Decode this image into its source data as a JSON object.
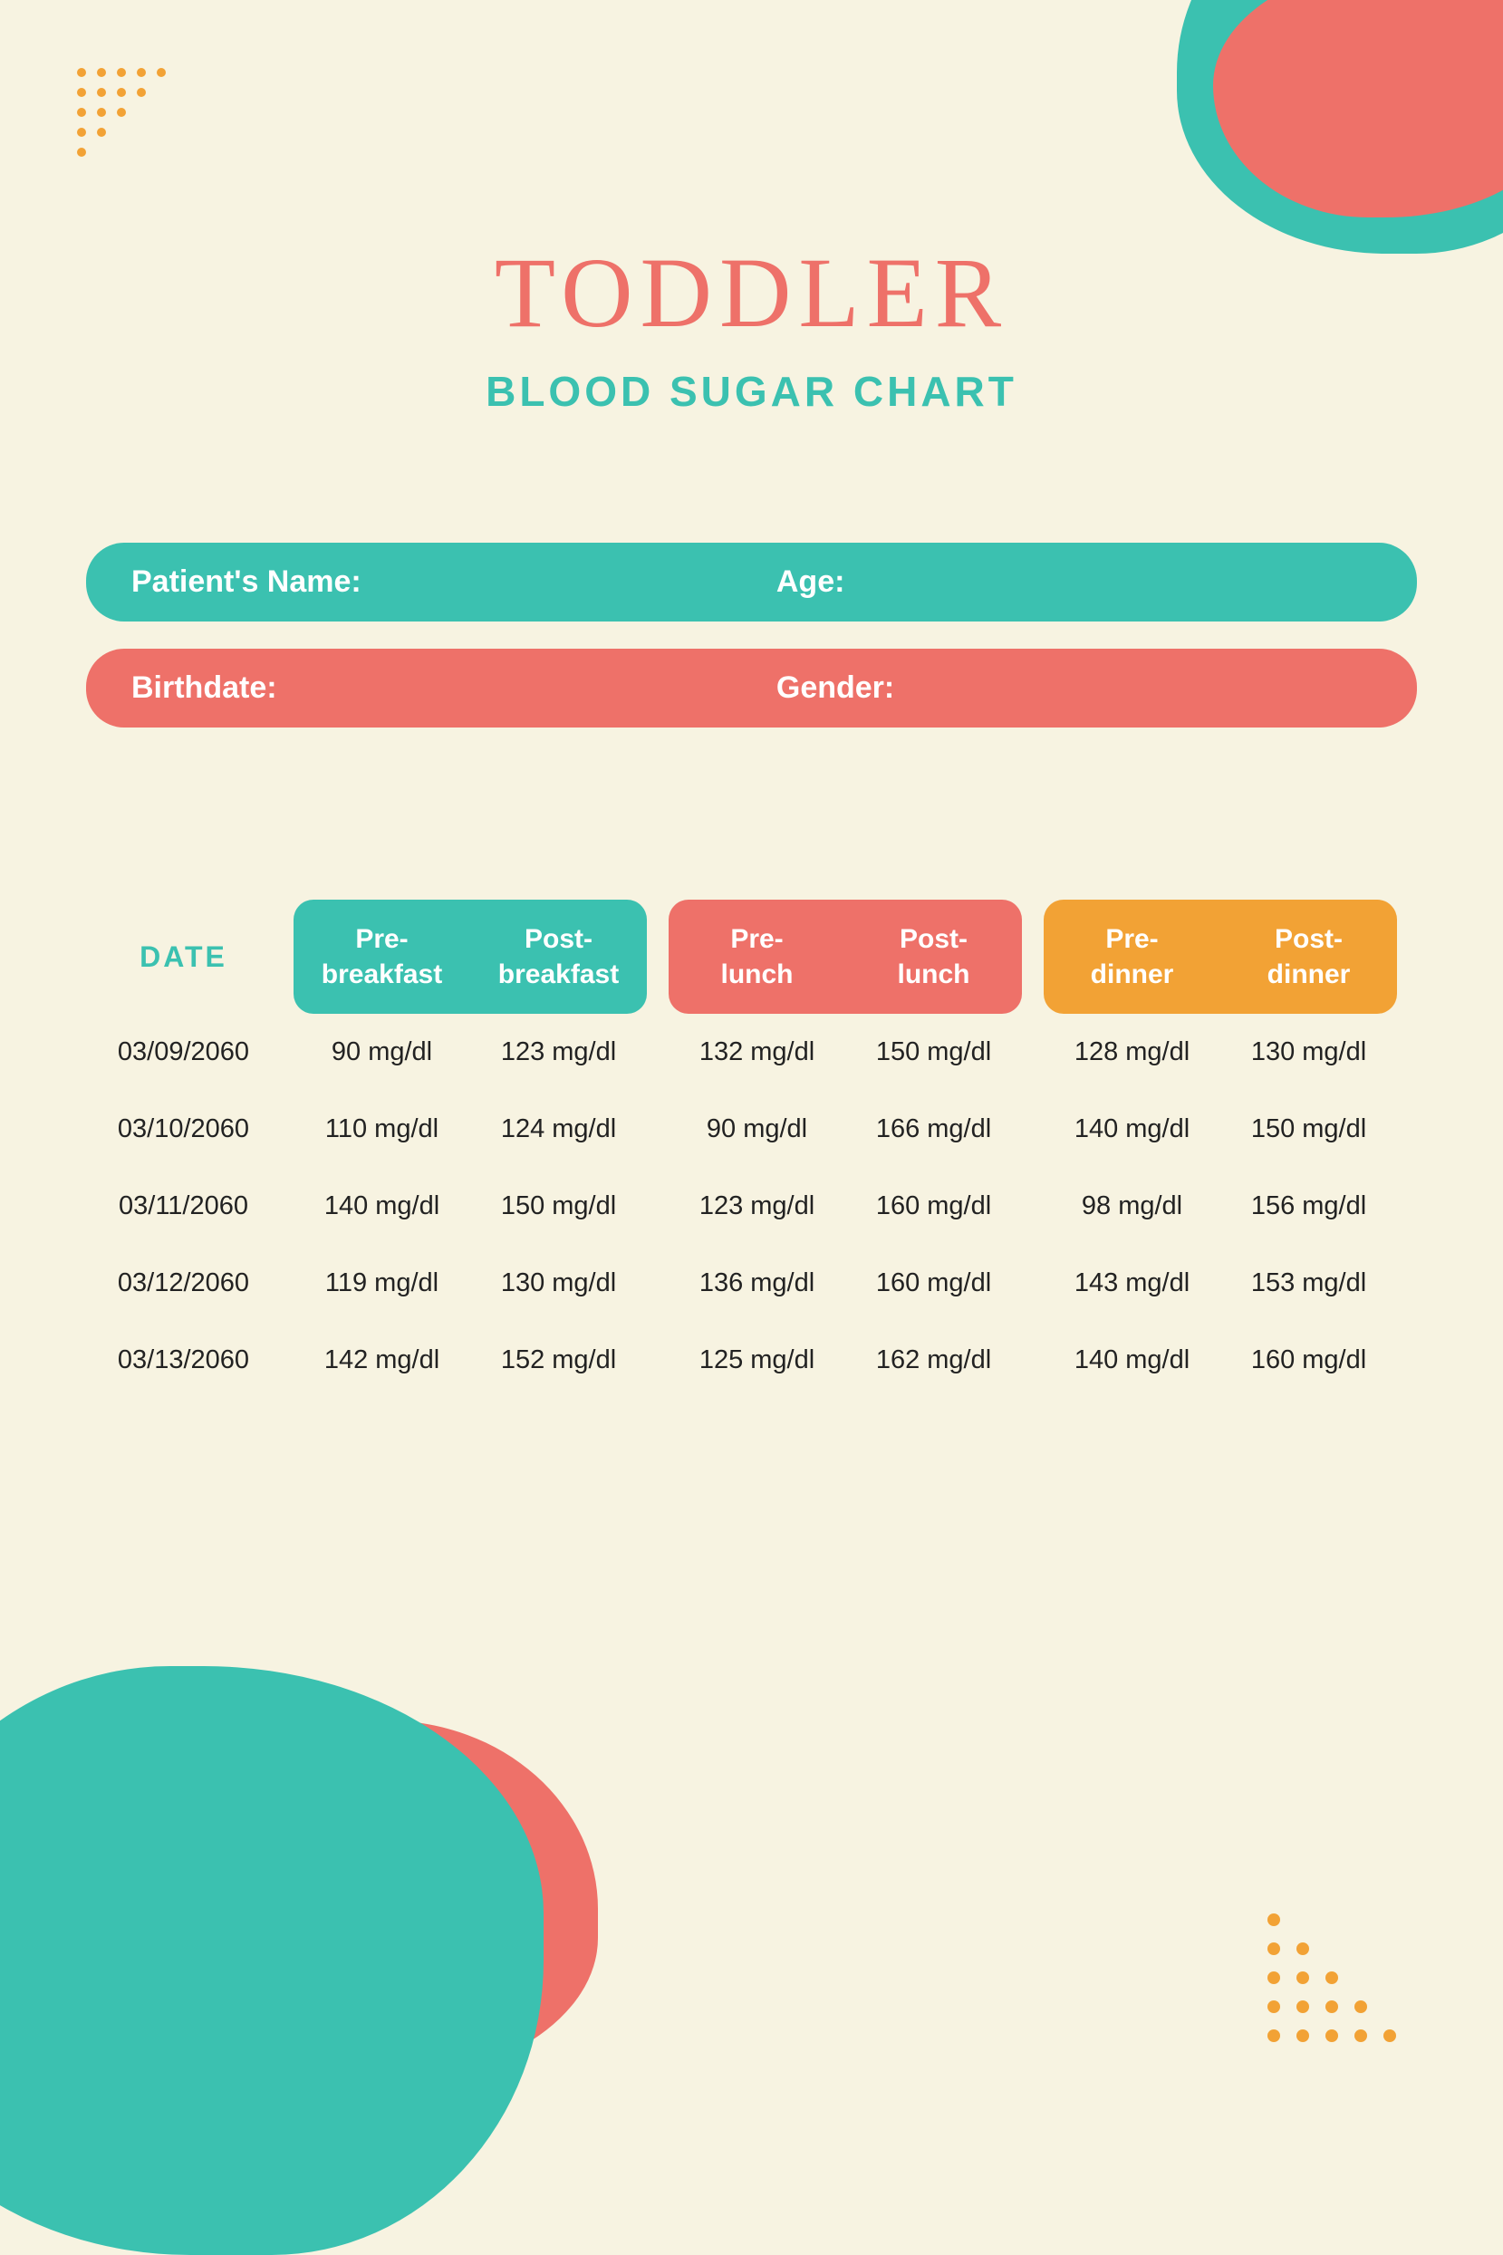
{
  "colors": {
    "background": "#f7f3e1",
    "teal": "#3bc1b0",
    "coral": "#ee7169",
    "orange": "#f2a235",
    "text": "#222222",
    "white": "#ffffff"
  },
  "header": {
    "title": "TODDLER",
    "subtitle": "BLOOD SUGAR CHART"
  },
  "info": {
    "row1_left": "Patient's Name:",
    "row1_right": "Age:",
    "row2_left": "Birthdate:",
    "row2_right": "Gender:"
  },
  "table": {
    "date_heading": "DATE",
    "groups": [
      {
        "pre": "Pre-breakfast",
        "post": "Post-breakfast",
        "color": "#3bc1b0"
      },
      {
        "pre": "Pre-lunch",
        "post": "Post-lunch",
        "color": "#ee7169"
      },
      {
        "pre": "Pre-dinner",
        "post": "Post-dinner",
        "color": "#f2a235"
      }
    ],
    "columns": [
      "date",
      "pre_breakfast",
      "post_breakfast",
      "pre_lunch",
      "post_lunch",
      "pre_dinner",
      "post_dinner"
    ],
    "rows": [
      {
        "date": "03/09/2060",
        "pre_breakfast": "90 mg/dl",
        "post_breakfast": "123 mg/dl",
        "pre_lunch": "132 mg/dl",
        "post_lunch": "150 mg/dl",
        "pre_dinner": "128 mg/dl",
        "post_dinner": "130 mg/dl"
      },
      {
        "date": "03/10/2060",
        "pre_breakfast": "110 mg/dl",
        "post_breakfast": "124 mg/dl",
        "pre_lunch": "90 mg/dl",
        "post_lunch": "166 mg/dl",
        "pre_dinner": "140 mg/dl",
        "post_dinner": "150 mg/dl"
      },
      {
        "date": "03/11/2060",
        "pre_breakfast": "140 mg/dl",
        "post_breakfast": "150 mg/dl",
        "pre_lunch": "123 mg/dl",
        "post_lunch": "160 mg/dl",
        "pre_dinner": "98 mg/dl",
        "post_dinner": "156 mg/dl"
      },
      {
        "date": "03/12/2060",
        "pre_breakfast": "119 mg/dl",
        "post_breakfast": "130 mg/dl",
        "pre_lunch": "136 mg/dl",
        "post_lunch": "160 mg/dl",
        "pre_dinner": "143 mg/dl",
        "post_dinner": "153 mg/dl"
      },
      {
        "date": "03/13/2060",
        "pre_breakfast": "142 mg/dl",
        "post_breakfast": "152 mg/dl",
        "pre_lunch": "125 mg/dl",
        "post_lunch": "162 mg/dl",
        "pre_dinner": "140 mg/dl",
        "post_dinner": "160 mg/dl"
      }
    ]
  }
}
